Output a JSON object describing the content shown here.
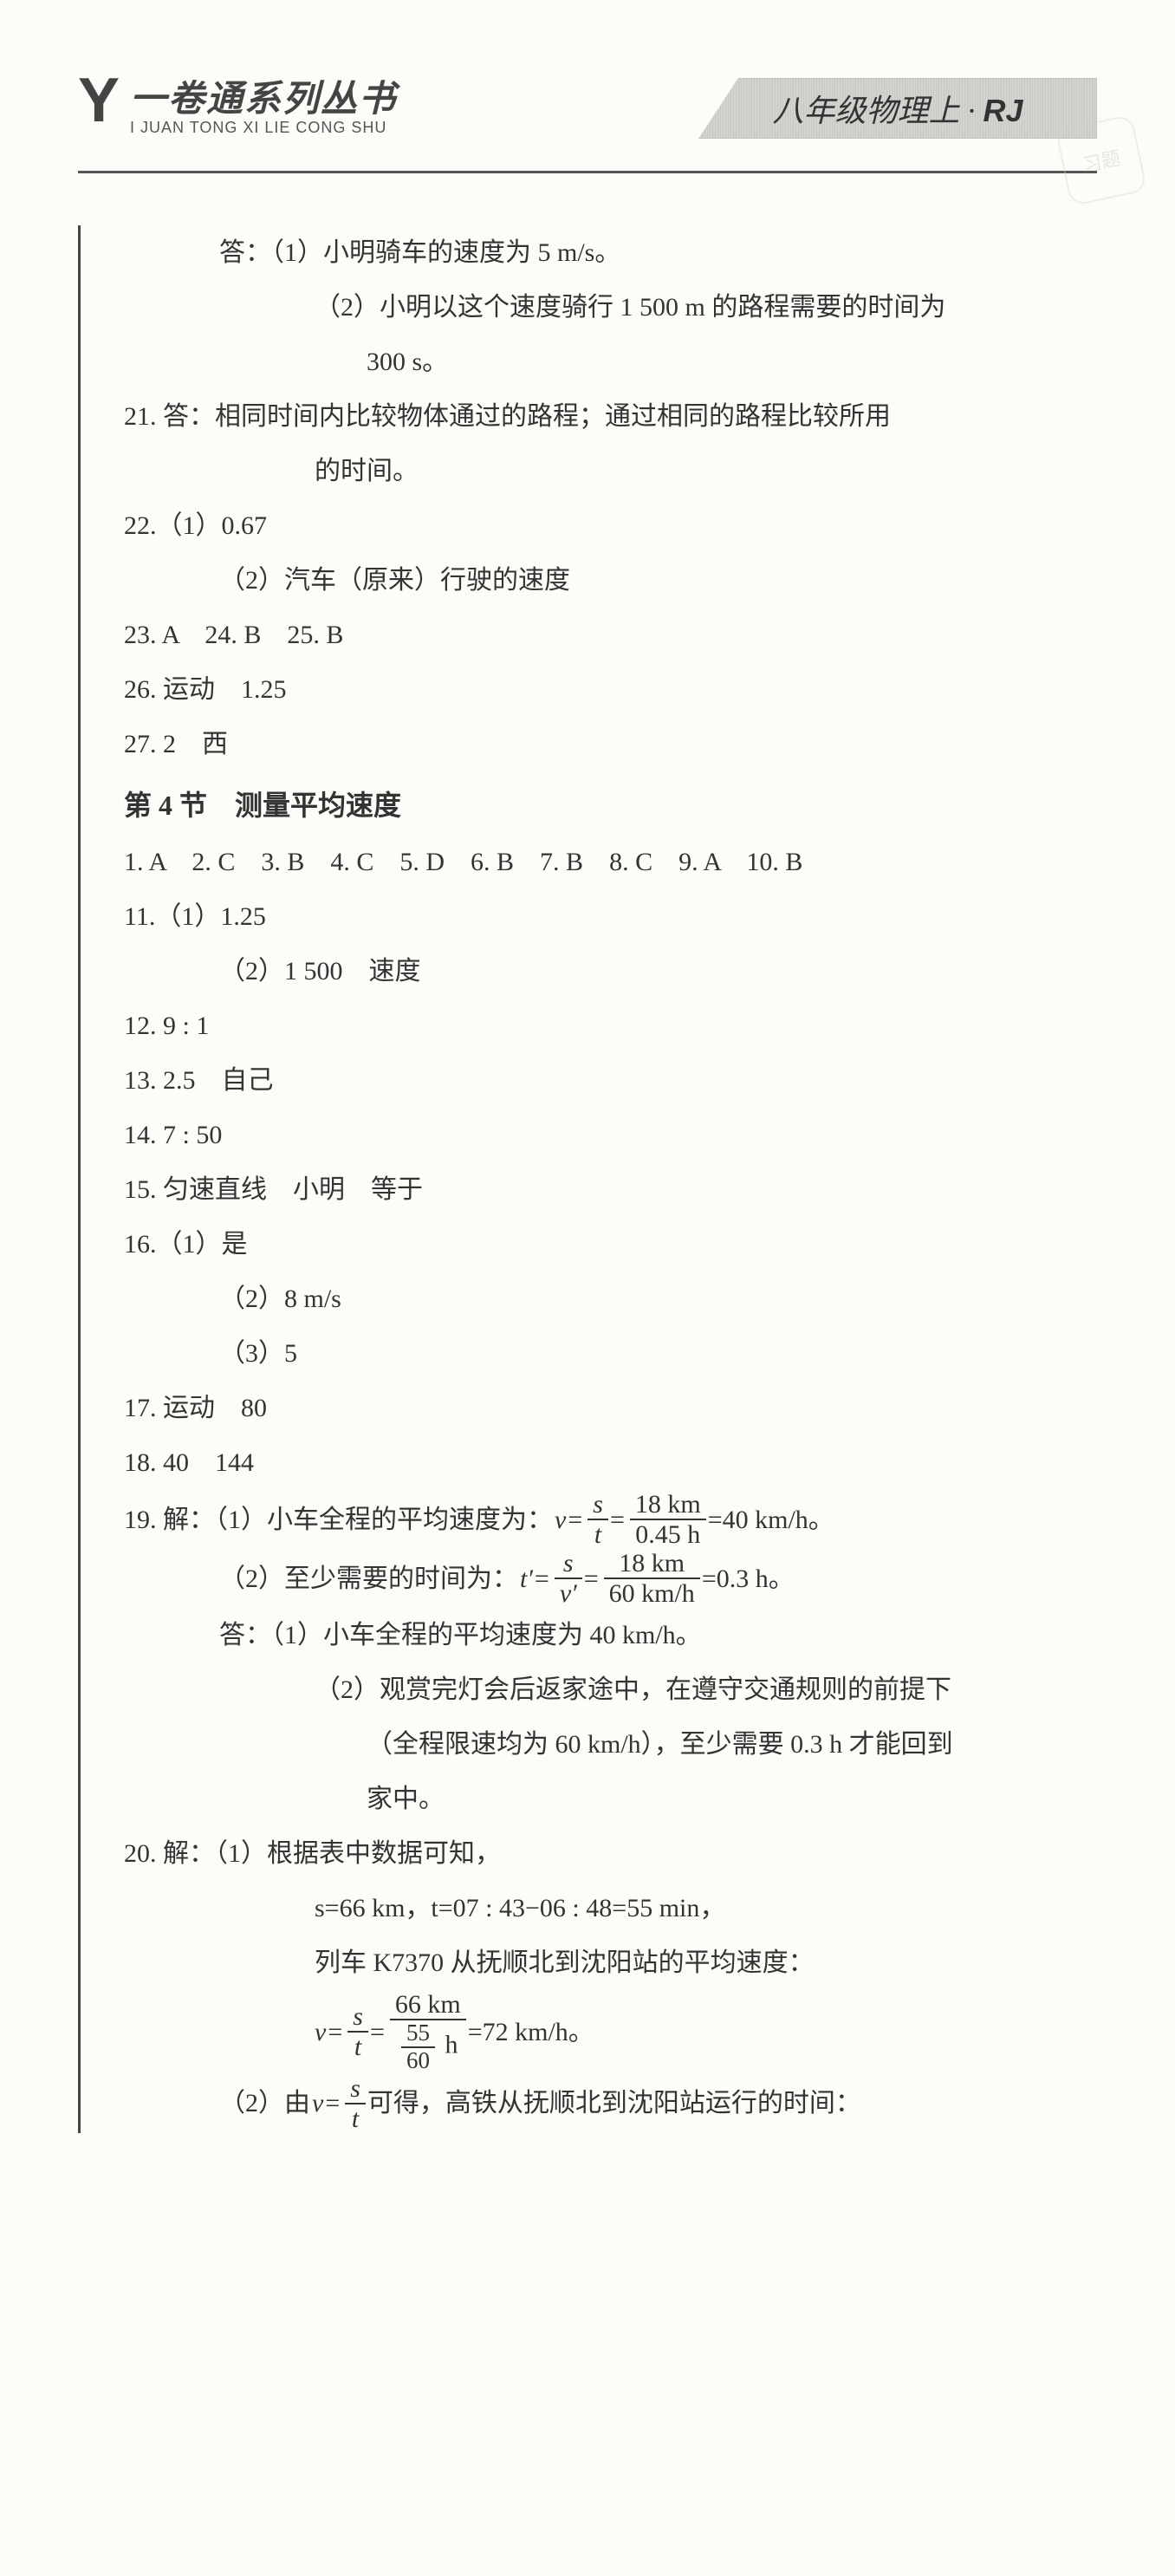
{
  "header": {
    "logo": "Y",
    "series_cn": "一卷通系列丛书",
    "series_pinyin": "I JUAN TONG XI LIE CONG SHU",
    "tab_cn": "八年级物理上",
    "tab_dot": "·",
    "tab_suffix": "RJ",
    "watermark": "习题"
  },
  "colors": {
    "text": "#333333",
    "rule": "#444444",
    "bg": "#fcfcf8"
  },
  "lines": {
    "l01a": "答：（1）小明骑车的速度为 5 m/s。",
    "l01b": "（2）小明以这个速度骑行 1 500 m 的路程需要的时间为",
    "l01c": "300 s。",
    "l21": "21. 答：相同时间内比较物体通过的路程；通过相同的路程比较所用",
    "l21b": "的时间。",
    "l22a": "22.（1）0.67",
    "l22b": "（2）汽车（原来）行驶的速度",
    "l23": "23. A　24. B　25. B",
    "l26": "26. 运动　1.25",
    "l27": "27. 2　西",
    "sec4": "第 4 节　测量平均速度",
    "s4_mc": "1. A　2. C　3. B　4. C　5. D　6. B　7. B　8. C　9. A　10. B",
    "s4_11a": "11.（1）1.25",
    "s4_11b": "（2）1 500　速度",
    "s4_12": "12. 9 : 1",
    "s4_13": "13. 2.5　自己",
    "s4_14": "14. 7 : 50",
    "s4_15": "15. 匀速直线　小明　等于",
    "s4_16a": "16.（1）是",
    "s4_16b": "（2）8 m/s",
    "s4_16c": "（3）5",
    "s4_17": "17. 运动　80",
    "s4_18": "18. 40　144",
    "s4_19_pre": "19. 解：（1）小车全程的平均速度为：",
    "s4_19_eq1": {
      "v": "v",
      "eq": "=",
      "s": "s",
      "t": "t",
      "num": "18 km",
      "den": "0.45 h",
      "res": "=40 km/h。"
    },
    "s4_19b_pre": "（2）至少需要的时间为：",
    "s4_19_eq2": {
      "tp": "t′",
      "eq": "=",
      "s": "s",
      "vp": "v′",
      "num": "18 km",
      "den": "60 km/h",
      "res": "=0.3 h。"
    },
    "s4_19c": "答：（1）小车全程的平均速度为 40 km/h。",
    "s4_19d": "（2）观赏完灯会后返家途中，在遵守交通规则的前提下",
    "s4_19e": "（全程限速均为 60 km/h），至少需要 0.3 h 才能回到",
    "s4_19f": "家中。",
    "s4_20a": "20. 解：（1）根据表中数据可知，",
    "s4_20b": "s=66 km，t=07 : 43−06 : 48=55 min，",
    "s4_20c": "列车 K7370 从抚顺北到沈阳站的平均速度：",
    "s4_20_eq": {
      "v": "v",
      "eq": "=",
      "s": "s",
      "t": "t",
      "num": "66 km",
      "d_num": "55",
      "d_den": "60",
      "d_unit": " h",
      "res": "=72 km/h。"
    },
    "s4_20d_pre": "（2）由 ",
    "s4_20d_eq": {
      "v": "v",
      "eq": "=",
      "s": "s",
      "t": "t"
    },
    "s4_20d_post": " 可得，高铁从抚顺北到沈阳站运行的时间："
  }
}
